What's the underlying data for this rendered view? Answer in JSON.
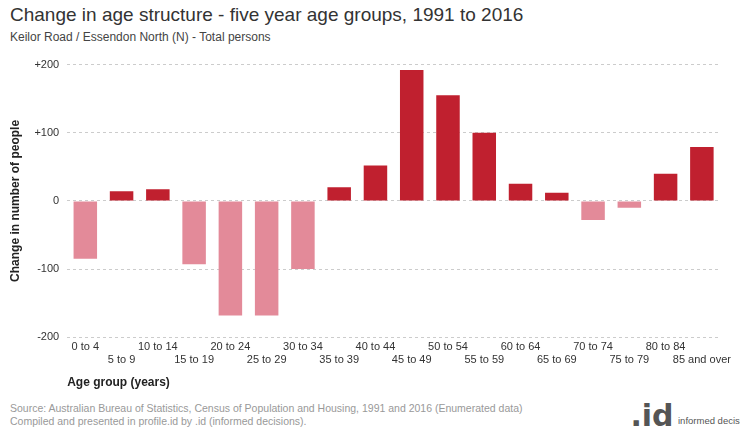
{
  "chart_data": {
    "type": "bar",
    "title": "Change in age structure - five year age groups, 1991 to 2016",
    "subtitle": "Keilor Road / Essendon North (N) - Total persons",
    "x_label": "Age group (years)",
    "y_label": "Change in number of people",
    "categories": [
      "0 to 4",
      "5 to 9",
      "10 to 14",
      "15 to 19",
      "20 to 24",
      "25 to 29",
      "30 to 34",
      "35 to 39",
      "40 to 44",
      "45 to 49",
      "50 to 54",
      "55 to 59",
      "60 to 64",
      "65 to 69",
      "70 to 74",
      "75 to 79",
      "80 to 84",
      "85 and over"
    ],
    "values": [
      -85,
      14,
      17,
      -93,
      -168,
      -168,
      -100,
      20,
      52,
      192,
      155,
      100,
      25,
      12,
      -28,
      -10,
      40,
      79
    ],
    "colors": [
      "#e38a99",
      "#c0202f",
      "#c0202f",
      "#e38a99",
      "#e38a99",
      "#e38a99",
      "#e38a99",
      "#c0202f",
      "#c0202f",
      "#c0202f",
      "#c0202f",
      "#c0202f",
      "#c0202f",
      "#c0202f",
      "#e38a99",
      "#e38a99",
      "#c0202f",
      "#c0202f"
    ],
    "ylim": [
      -200,
      200
    ],
    "yticks": [
      -200,
      -100,
      0,
      {
        "value": 100,
        "label": "+100"
      },
      {
        "value": 200,
        "label": "+200"
      }
    ],
    "grid": true,
    "source": [
      "Source: Australian Bureau of Statistics, Census of Population and Housing, 1991 and 2016 (Enumerated data)",
      "Compiled and presented in profile.id by .id (informed decisions)."
    ],
    "logo": {
      "mark": ".id",
      "text": "informed decisions"
    }
  }
}
